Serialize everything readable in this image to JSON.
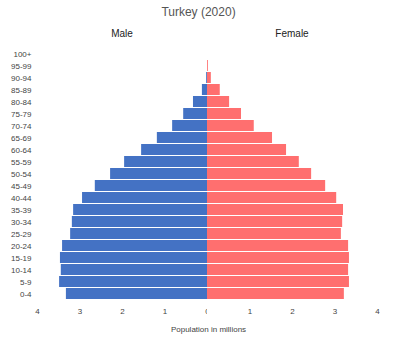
{
  "chart_data": {
    "type": "bar",
    "orientation": "horizontal",
    "title": "Turkey (2020)",
    "xlabel": "Population in millions",
    "categories": [
      "0-4",
      "5-9",
      "10-14",
      "15-19",
      "20-24",
      "25-29",
      "30-34",
      "35-39",
      "40-44",
      "45-49",
      "50-54",
      "55-59",
      "60-64",
      "65-69",
      "70-74",
      "75-79",
      "80-84",
      "85-89",
      "90-94",
      "95-99",
      "100+"
    ],
    "series": [
      {
        "name": "Male",
        "color": "#4472c4",
        "values": [
          3.32,
          3.48,
          3.44,
          3.46,
          3.41,
          3.22,
          3.18,
          3.15,
          2.94,
          2.64,
          2.28,
          1.95,
          1.55,
          1.18,
          0.82,
          0.56,
          0.33,
          0.12,
          0.02,
          0,
          0
        ]
      },
      {
        "name": "Female",
        "color": "#ff6f6f",
        "values": [
          3.22,
          3.34,
          3.32,
          3.34,
          3.32,
          3.15,
          3.18,
          3.2,
          3.04,
          2.78,
          2.45,
          2.16,
          1.86,
          1.53,
          1.1,
          0.8,
          0.52,
          0.3,
          0.09,
          0.02,
          0
        ]
      }
    ],
    "xlim": [
      0,
      4
    ],
    "xticks": [
      0,
      1,
      2,
      3,
      4
    ],
    "grid": false
  }
}
